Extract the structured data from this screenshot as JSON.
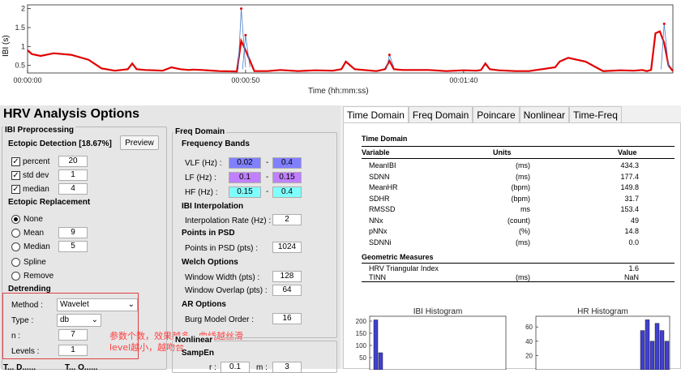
{
  "top_plot": {
    "ylabel": "IBI (s)",
    "xlabel": "Time (hh:mm:ss)",
    "yticks": [
      "0.5",
      "1",
      "1.5",
      "2"
    ],
    "xticks": [
      "00:00:00",
      "00:00:50",
      "00:01:40"
    ]
  },
  "chart_data": [
    {
      "type": "line",
      "title": "",
      "xlabel": "Time (hh:mm:ss)",
      "ylabel": "IBI (s)",
      "ylim": [
        0.3,
        2.1
      ],
      "xlim": [
        0,
        148
      ],
      "series": [
        {
          "values_x": [
            0,
            1,
            3,
            6,
            10,
            14,
            17,
            20,
            23,
            24,
            25,
            27,
            29,
            31,
            33,
            35,
            37,
            38,
            40,
            44,
            48,
            49,
            50,
            52,
            55,
            58,
            62,
            66,
            70,
            72,
            73,
            75,
            80,
            82,
            83,
            84,
            86,
            92,
            96,
            100,
            103,
            104,
            105,
            106,
            108,
            112,
            115,
            118,
            121,
            122,
            124,
            128,
            132,
            136,
            139,
            141,
            142,
            143,
            144,
            145,
            146,
            147,
            148
          ],
          "values": [
            0.9,
            0.8,
            0.75,
            0.82,
            0.78,
            0.65,
            0.42,
            0.36,
            0.4,
            0.55,
            0.4,
            0.38,
            0.37,
            0.36,
            0.45,
            0.4,
            0.38,
            0.39,
            0.38,
            0.35,
            0.34,
            1.15,
            0.9,
            0.35,
            0.35,
            0.38,
            0.35,
            0.37,
            0.36,
            0.4,
            0.6,
            0.4,
            0.35,
            0.4,
            0.62,
            0.4,
            0.38,
            0.38,
            0.35,
            0.37,
            0.36,
            0.38,
            0.55,
            0.4,
            0.37,
            0.35,
            0.35,
            0.4,
            0.45,
            0.6,
            0.7,
            0.6,
            0.35,
            0.37,
            0.36,
            0.38,
            0.35,
            0.38,
            1.35,
            1.4,
            1.1,
            0.5,
            0.35
          ]
        },
        {
          "values_x": [
            49,
            50,
            83,
            146
          ],
          "values": [
            2.0,
            1.3,
            0.78,
            1.6
          ]
        }
      ]
    },
    {
      "type": "bar",
      "title": "IBI Histogram",
      "ylim": [
        0,
        220
      ],
      "yticks": [
        "50",
        "100",
        "150",
        "200"
      ],
      "values": [
        205,
        70
      ]
    },
    {
      "type": "bar",
      "title": "HR Histogram",
      "ylim": [
        0,
        75
      ],
      "yticks": [
        "20",
        "40",
        "60"
      ],
      "values": [
        55,
        70,
        40,
        65,
        55,
        40
      ]
    }
  ],
  "left": {
    "title": "HRV Analysis Options",
    "ibi_group": "IBI Preprocessing",
    "ectopic_detection": "Ectopic Detection [18.67%]",
    "preview_btn": "Preview",
    "percent_label": "percent",
    "percent_val": "20",
    "stddev_label": "std dev",
    "stddev_val": "1",
    "median_label": "median",
    "median_val": "4",
    "ectopic_replacement": "Ectopic Replacement",
    "opt_none": "None",
    "opt_mean": "Mean",
    "mean_val": "9",
    "opt_median": "Median",
    "median2_val": "5",
    "opt_spline": "Spline",
    "opt_remove": "Remove",
    "detrending": "Detrending",
    "method_label": "Method :",
    "method_val": "Wavelet",
    "type_label": "Type :",
    "type_val": "db",
    "n_label": "n :",
    "n_val": "7",
    "levels_label": "Levels :",
    "levels_val": "1",
    "annotation_line1": "参数个数，效果越多，曲线越丝滑",
    "annotation_line2": "level越小，越吻合",
    "bottom_left_a": "T... D......",
    "bottom_left_b": "T... O......",
    "freq_group": "Freq Domain",
    "freq_bands": "Frequency Bands",
    "vlf_label": "VLF (Hz) :",
    "vlf_lo": "0.02",
    "vlf_hi": "0.4",
    "lf_label": "LF (Hz) :",
    "lf_lo": "0.1",
    "lf_hi": "0.15",
    "hf_label": "HF (Hz) :",
    "hf_lo": "0.15",
    "hf_hi": "0.4",
    "dash": "-",
    "ibi_interp": "IBI Interpolation",
    "interp_rate_label": "Interpolation Rate (Hz) :",
    "interp_rate_val": "2",
    "points_psd": "Points in PSD",
    "points_label": "Points in PSD (pts) :",
    "points_val": "1024",
    "welch": "Welch Options",
    "window_width_label": "Window Width (pts) :",
    "window_width_val": "128",
    "window_overlap_label": "Window Overlap (pts) :",
    "window_overlap_val": "64",
    "ar_options": "AR Options",
    "burg_label": "Burg Model Order :",
    "burg_val": "16",
    "nonlinear_group": "Nonlinear",
    "sampen": "SampEn",
    "r_label": "r :",
    "r_val": "0.1",
    "m_label": "m :",
    "m_val": "3",
    "colors": {
      "vlf": "#8080ff",
      "lf": "#c080ff",
      "hf": "#80ffff"
    }
  },
  "right": {
    "tabs": [
      "Time Domain",
      "Freq Domain",
      "Poincare",
      "Nonlinear",
      "Time-Freq"
    ],
    "td_title": "Time Domain",
    "col_variable": "Variable",
    "col_units": "Units",
    "col_value": "Value",
    "rows": [
      {
        "v": "MeanIBI",
        "u": "(ms)",
        "val": "434.3"
      },
      {
        "v": "SDNN",
        "u": "(ms)",
        "val": "177.4"
      },
      {
        "v": "MeanHR",
        "u": "(bpm)",
        "val": "149.8"
      },
      {
        "v": "SDHR",
        "u": "(bpm)",
        "val": "31.7"
      },
      {
        "v": "RMSSD",
        "u": "ms",
        "val": "153.4"
      },
      {
        "v": "NNx",
        "u": "(count)",
        "val": "49"
      },
      {
        "v": "pNNx",
        "u": "(%)",
        "val": "14.8"
      },
      {
        "v": "SDNNi",
        "u": "(ms)",
        "val": "0.0"
      }
    ],
    "geo_title": "Geometric Measures",
    "geo_rows": [
      {
        "v": "HRV Triangular Index",
        "u": "",
        "val": "1.6"
      },
      {
        "v": "TINN",
        "u": "(ms)",
        "val": "NaN"
      }
    ]
  }
}
